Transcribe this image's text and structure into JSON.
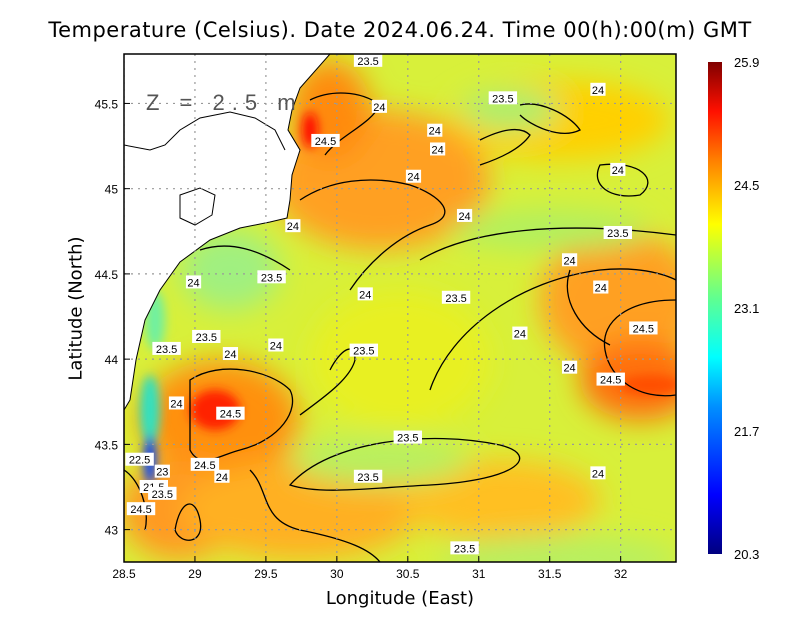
{
  "title": "Temperature (Celsius). Date 2024.06.24. Time 00(h):00(m) GMT",
  "depth_label": "Z = 2.5 m",
  "xlabel": "Longitude (East)",
  "ylabel": "Latitude (North)",
  "x_ticks": [
    "28.5",
    "29",
    "29.5",
    "30",
    "30.5",
    "31",
    "31.5",
    "32"
  ],
  "x_tick_values": [
    28.5,
    29,
    29.5,
    30,
    30.5,
    31,
    31.5,
    32
  ],
  "y_ticks": [
    "45.5",
    "45",
    "44.5",
    "44",
    "43.5",
    "43"
  ],
  "y_tick_values": [
    45.5,
    45,
    44.5,
    44,
    43.5,
    43
  ],
  "extent": {
    "lon": [
      28.5,
      32.39
    ],
    "lat": [
      42.81,
      45.79
    ]
  },
  "colorbar": {
    "labels": [
      "25.9",
      "24.5",
      "23.1",
      "21.7",
      "20.3"
    ],
    "min": 20.3,
    "max": 25.9,
    "colors": [
      "#00007f",
      "#0000ff",
      "#0080ff",
      "#00ffff",
      "#80ff80",
      "#ffff00",
      "#ff8000",
      "#ff0000",
      "#800000"
    ]
  },
  "contour_labels": [
    {
      "text": "23.5",
      "lon": 30.22,
      "lat": 45.75
    },
    {
      "text": "24",
      "lon": 30.3,
      "lat": 45.48
    },
    {
      "text": "23.5",
      "lon": 31.17,
      "lat": 45.53
    },
    {
      "text": "24",
      "lon": 31.84,
      "lat": 45.58
    },
    {
      "text": "24",
      "lon": 30.69,
      "lat": 45.34
    },
    {
      "text": "24.5",
      "lon": 29.92,
      "lat": 45.28
    },
    {
      "text": "24",
      "lon": 30.71,
      "lat": 45.23
    },
    {
      "text": "24",
      "lon": 31.98,
      "lat": 45.11
    },
    {
      "text": "24",
      "lon": 30.54,
      "lat": 45.07
    },
    {
      "text": "24",
      "lon": 30.9,
      "lat": 44.84
    },
    {
      "text": "24",
      "lon": 29.69,
      "lat": 44.78
    },
    {
      "text": "23.5",
      "lon": 31.98,
      "lat": 44.74
    },
    {
      "text": "24",
      "lon": 31.64,
      "lat": 44.58
    },
    {
      "text": "23.5",
      "lon": 29.54,
      "lat": 44.48
    },
    {
      "text": "24",
      "lon": 28.99,
      "lat": 44.45
    },
    {
      "text": "24",
      "lon": 30.2,
      "lat": 44.38
    },
    {
      "text": "23.5",
      "lon": 30.84,
      "lat": 44.36
    },
    {
      "text": "24",
      "lon": 31.86,
      "lat": 44.42
    },
    {
      "text": "23.5",
      "lon": 29.08,
      "lat": 44.13
    },
    {
      "text": "24.5",
      "lon": 32.16,
      "lat": 44.18
    },
    {
      "text": "24",
      "lon": 31.29,
      "lat": 44.15
    },
    {
      "text": "23.5",
      "lon": 28.8,
      "lat": 44.06
    },
    {
      "text": "24",
      "lon": 29.57,
      "lat": 44.08
    },
    {
      "text": "24",
      "lon": 29.25,
      "lat": 44.03
    },
    {
      "text": "23.5",
      "lon": 30.19,
      "lat": 44.05
    },
    {
      "text": "24",
      "lon": 31.64,
      "lat": 43.95
    },
    {
      "text": "24.5",
      "lon": 31.93,
      "lat": 43.88
    },
    {
      "text": "24",
      "lon": 28.87,
      "lat": 43.74
    },
    {
      "text": "24.5",
      "lon": 29.25,
      "lat": 43.68
    },
    {
      "text": "23.5",
      "lon": 30.5,
      "lat": 43.54
    },
    {
      "text": "22.5",
      "lon": 28.61,
      "lat": 43.41
    },
    {
      "text": "24.5",
      "lon": 29.07,
      "lat": 43.38
    },
    {
      "text": "23",
      "lon": 28.77,
      "lat": 43.34
    },
    {
      "text": "24",
      "lon": 29.19,
      "lat": 43.31
    },
    {
      "text": "23.5",
      "lon": 30.22,
      "lat": 43.31
    },
    {
      "text": "24",
      "lon": 31.84,
      "lat": 43.33
    },
    {
      "text": "21.5",
      "lon": 28.71,
      "lat": 43.25
    },
    {
      "text": "23.5",
      "lon": 28.77,
      "lat": 43.21
    },
    {
      "text": "24.5",
      "lon": 28.62,
      "lat": 43.12
    },
    {
      "text": "23.5",
      "lon": 30.9,
      "lat": 42.89
    }
  ]
}
